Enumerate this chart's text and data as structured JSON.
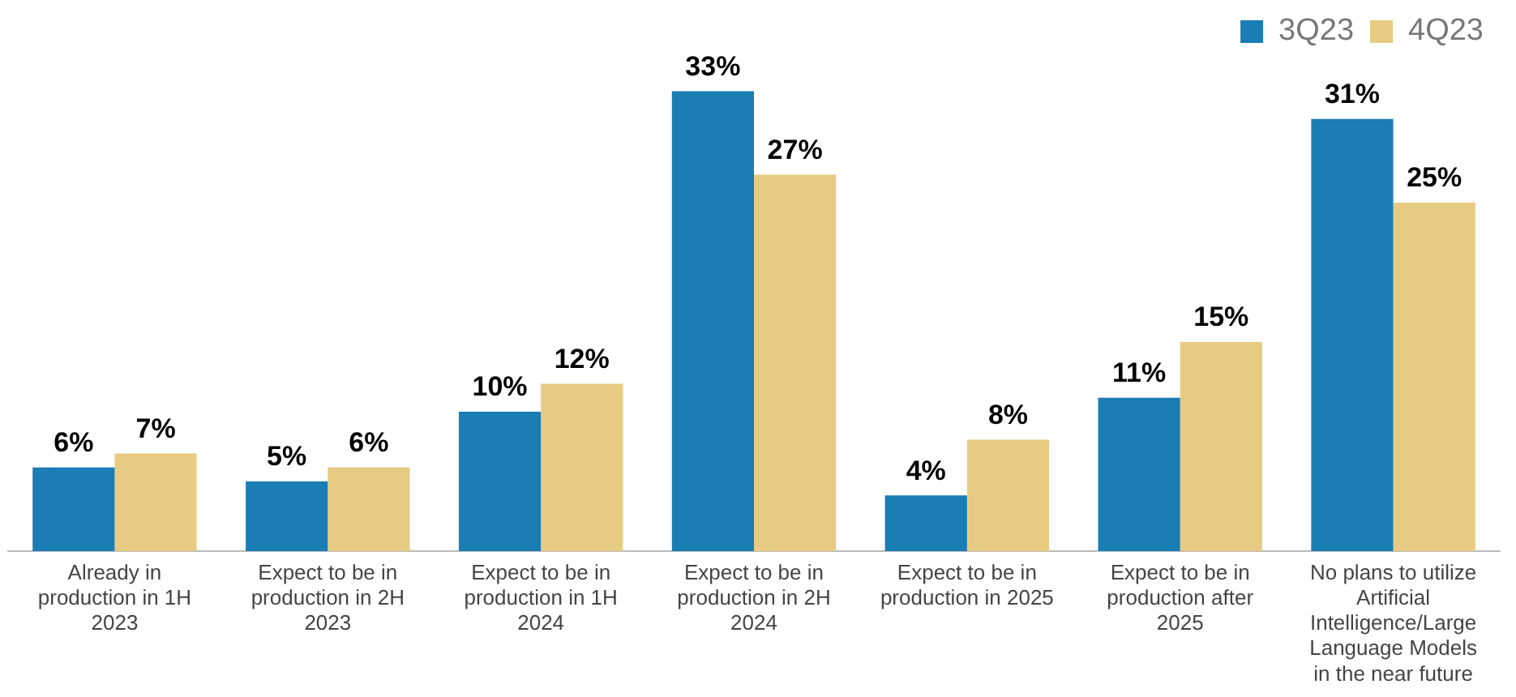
{
  "chart_data": {
    "type": "bar",
    "categories": [
      "Already in production in 1H 2023",
      "Expect to be in production in 2H 2023",
      "Expect to be in production in 1H 2024",
      "Expect to be in production in 2H 2024",
      "Expect to be in production in 2025",
      "Expect to be in production after 2025",
      "No plans to utilize Artificial Intelligence/Large Language Models in the near future"
    ],
    "series": [
      {
        "name": "3Q23",
        "color": "#1a7db3",
        "values": [
          6,
          5,
          10,
          33,
          4,
          11,
          31
        ],
        "value_labels": [
          "6%",
          "5%",
          "10%",
          "33%",
          "4%",
          "11%",
          "31%"
        ]
      },
      {
        "name": "4Q23",
        "color": "#e8cb82",
        "values": [
          7,
          6,
          12,
          27,
          8,
          15,
          25
        ],
        "value_labels": [
          "7%",
          "6%",
          "12%",
          "27%",
          "8%",
          "15%",
          "25%"
        ]
      }
    ],
    "legend": "top right",
    "grid": false
  }
}
